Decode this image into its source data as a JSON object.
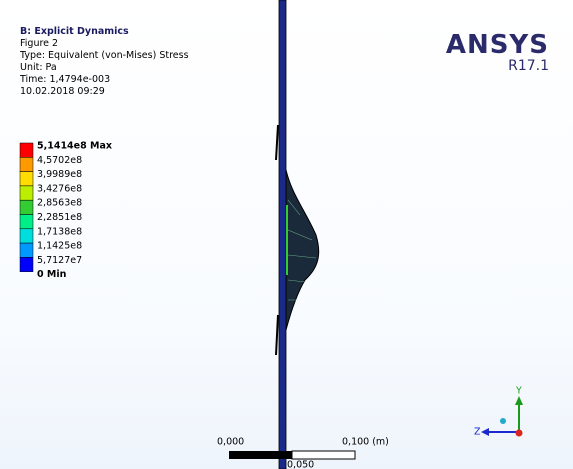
{
  "header": {
    "title": "B: Explicit Dynamics",
    "lines": [
      "Figure 2",
      "Type: Equivalent (von-Mises) Stress",
      "Unit: Pa",
      "Time: 1,4794e-003",
      "10.02.2018 09:29"
    ]
  },
  "logo": {
    "brand": "ANSYS",
    "version": "R17.1"
  },
  "legend": {
    "labels": [
      "5,1414e8 Max",
      "4,5702e8",
      "3,9989e8",
      "3,4276e8",
      "2,8563e8",
      "2,2851e8",
      "1,7138e8",
      "1,1425e8",
      "5,7127e7",
      "0 Min"
    ],
    "colors": [
      "#ff0000",
      "#ff9900",
      "#ffdd00",
      "#bbee00",
      "#33cc33",
      "#00ee88",
      "#00dddd",
      "#0099ff",
      "#0000ff"
    ]
  },
  "scale_bar": {
    "start": "0,000",
    "end": "0,100 (m)",
    "mid": "0,050"
  },
  "triad": {
    "y": "Y",
    "z": "Z"
  }
}
